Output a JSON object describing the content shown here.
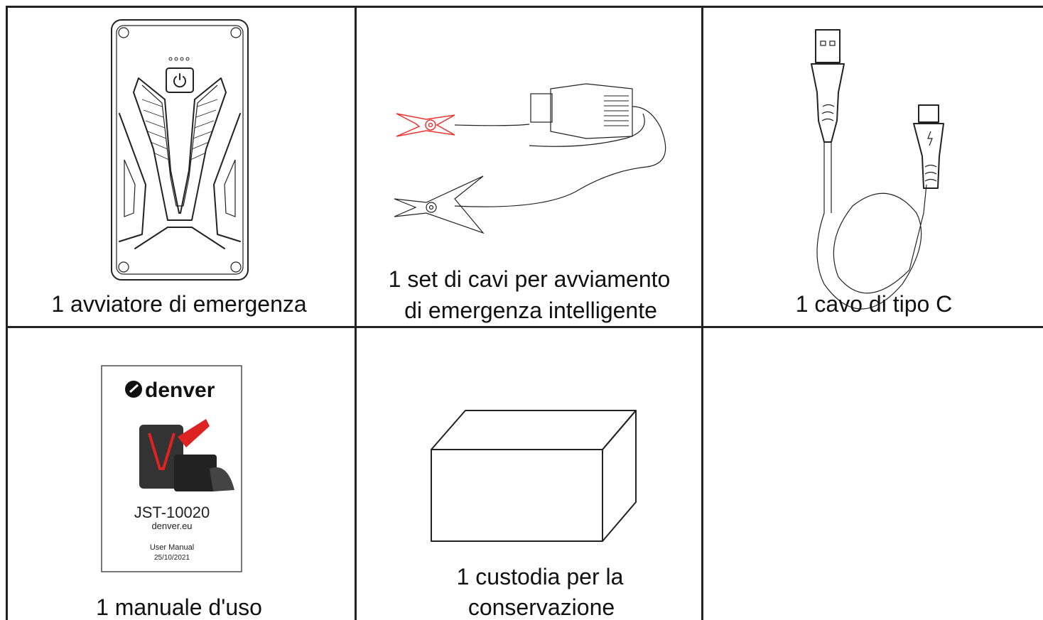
{
  "items": [
    {
      "caption": [
        "1 avviatore di emergenza"
      ]
    },
    {
      "caption": [
        "1 set di cavi per avviamento",
        "di emergenza intelligente"
      ]
    },
    {
      "caption": [
        "1 cavo di tipo C"
      ]
    },
    {
      "caption": [
        "1 manuale d'uso"
      ]
    },
    {
      "caption": [
        "1 custodia per la",
        "conservazione"
      ]
    }
  ],
  "manual_cover": {
    "brand": "denver",
    "model": "JST-10020",
    "website": "denver.eu",
    "doc_title": "User Manual",
    "date": "25/10/2021"
  }
}
